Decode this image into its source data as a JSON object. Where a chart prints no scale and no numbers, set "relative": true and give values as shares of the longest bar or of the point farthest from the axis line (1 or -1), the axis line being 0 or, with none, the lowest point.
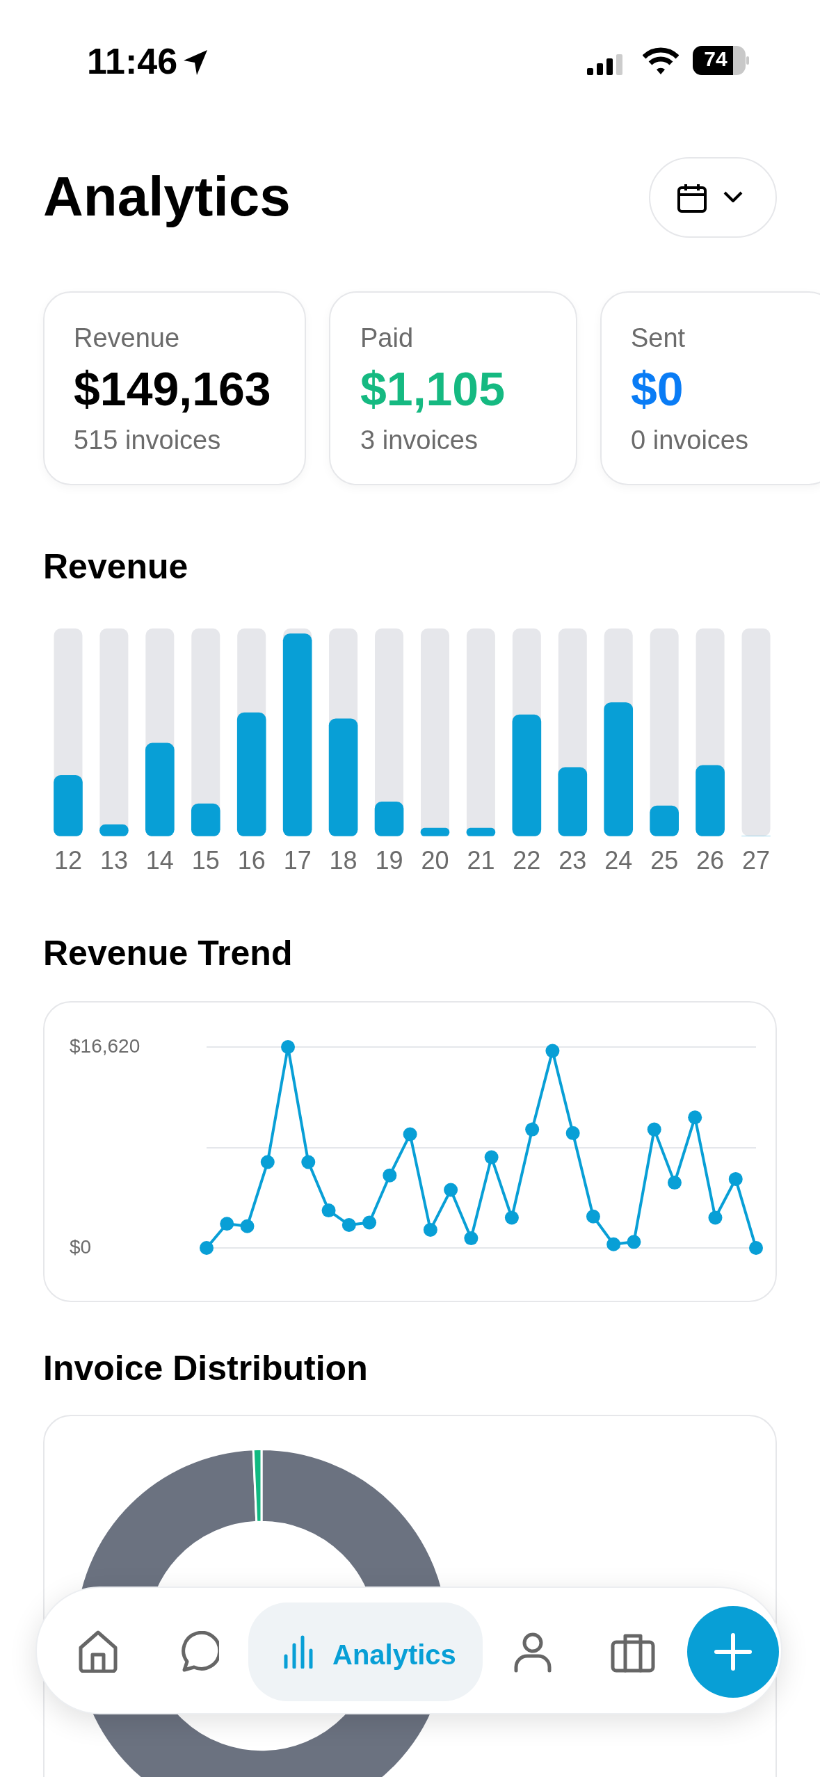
{
  "chart_data": [
    {
      "type": "other",
      "title": "Analytics",
      "annotations": [
        "11:46",
        "74",
        "Revenue",
        "$149,163",
        "515 invoices",
        "Paid",
        "$1,105",
        "3 invoices",
        "Sent",
        "$0",
        "0 invoices",
        "Analytics"
      ]
    },
    {
      "type": "bar",
      "title": "Revenue",
      "categories": [
        "12",
        "13",
        "14",
        "15",
        "16",
        "17",
        "18",
        "19",
        "20",
        "21",
        "22",
        "23",
        "24",
        "25",
        "26",
        "27"
      ],
      "values": [
        0.3,
        0.057,
        0.46,
        0.16,
        0.61,
        1,
        0.58,
        0.17,
        0.04,
        0.04,
        0.6,
        0.34,
        0.66,
        0.15,
        0.35,
        0
      ],
      "color": "#089fd6",
      "relative": true
    },
    {
      "type": "line",
      "title": "Revenue Trend",
      "categories": [
        null,
        null,
        null,
        null,
        null,
        null,
        null,
        null,
        null,
        null,
        null,
        null,
        null,
        null,
        null,
        null,
        null,
        null,
        null,
        null,
        null,
        null,
        null,
        null,
        null,
        null,
        null,
        null
      ],
      "values": [
        0,
        2000,
        1800,
        7100,
        16620,
        7100,
        3100,
        1900,
        2100,
        6000,
        9400,
        1500,
        4800,
        800,
        7500,
        2500,
        9800,
        16300,
        9500,
        2600,
        300,
        500,
        9800,
        5400,
        10800,
        2500,
        5700,
        0
      ],
      "color": "#089fd6",
      "ylim": [
        0,
        16620
      ],
      "yticks": [
        {
          "value": 0,
          "label": "$0"
        },
        {
          "value": 8310,
          "label": null
        },
        {
          "value": 16620,
          "label": "$16,620"
        }
      ],
      "grid": "y",
      "marker": "circle"
    },
    {
      "type": "donut",
      "title": "Invoice Distribution",
      "categories": [
        null,
        null
      ],
      "values": [
        99.3,
        0.7
      ],
      "colors": [
        "#6b7280",
        "#10b981"
      ]
    }
  ]
}
